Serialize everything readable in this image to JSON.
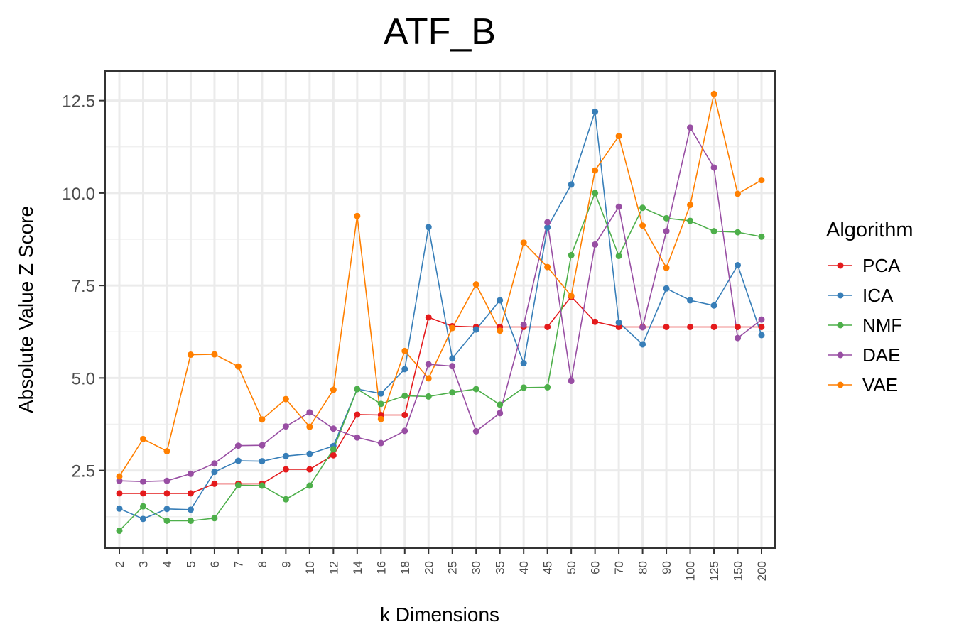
{
  "chart_data": {
    "type": "line",
    "title": "ATF_B",
    "xlabel": "k Dimensions",
    "ylabel": "Absolute Value Z Score",
    "ylim": [
      0.4,
      13.3
    ],
    "yticks": [
      2.5,
      5.0,
      7.5,
      10.0,
      12.5
    ],
    "ytick_labels": [
      "2.5",
      "5.0",
      "7.5",
      "10.0",
      "12.5"
    ],
    "grid": true,
    "legend_title": "Algorithm",
    "legend_position": "right",
    "categories": [
      "2",
      "3",
      "4",
      "5",
      "6",
      "7",
      "8",
      "9",
      "10",
      "12",
      "14",
      "16",
      "18",
      "20",
      "25",
      "30",
      "35",
      "40",
      "45",
      "50",
      "60",
      "70",
      "80",
      "90",
      "100",
      "125",
      "150",
      "200"
    ],
    "series": [
      {
        "name": "PCA",
        "color": "#e41a1c",
        "values": [
          1.88,
          1.88,
          1.88,
          1.88,
          2.14,
          2.14,
          2.14,
          2.53,
          2.53,
          2.91,
          4.01,
          4.0,
          4.0,
          6.64,
          6.4,
          6.38,
          6.38,
          6.38,
          6.38,
          7.2,
          6.52,
          6.38,
          6.38,
          6.38,
          6.38,
          6.38,
          6.38,
          6.38
        ]
      },
      {
        "name": "ICA",
        "color": "#377eb8",
        "values": [
          1.47,
          1.19,
          1.46,
          1.44,
          2.46,
          2.76,
          2.75,
          2.89,
          2.95,
          3.16,
          4.7,
          4.58,
          5.24,
          9.08,
          5.53,
          6.31,
          7.1,
          5.4,
          9.07,
          10.23,
          12.2,
          6.5,
          5.91,
          7.42,
          7.1,
          6.96,
          8.05,
          6.16
        ]
      },
      {
        "name": "NMF",
        "color": "#4daf4a",
        "values": [
          0.87,
          1.53,
          1.14,
          1.14,
          1.21,
          2.1,
          2.09,
          1.72,
          2.09,
          3.07,
          4.7,
          4.3,
          4.52,
          4.5,
          4.61,
          4.7,
          4.28,
          4.74,
          4.75,
          8.32,
          10.0,
          8.3,
          9.6,
          9.32,
          9.25,
          8.97,
          8.94,
          8.82
        ]
      },
      {
        "name": "DAE",
        "color": "#984ea3",
        "values": [
          2.22,
          2.2,
          2.22,
          2.41,
          2.69,
          3.17,
          3.18,
          3.69,
          4.07,
          3.63,
          3.39,
          3.24,
          3.57,
          5.37,
          5.32,
          3.56,
          4.05,
          6.44,
          9.21,
          4.92,
          8.61,
          9.63,
          6.37,
          8.97,
          11.77,
          10.69,
          6.08,
          6.58
        ]
      },
      {
        "name": "VAE",
        "color": "#ff7f00",
        "values": [
          2.34,
          3.35,
          3.02,
          5.63,
          5.64,
          5.31,
          3.88,
          4.43,
          3.68,
          4.68,
          9.38,
          3.89,
          5.73,
          4.99,
          6.35,
          7.53,
          6.28,
          8.66,
          8.0,
          7.22,
          10.61,
          11.54,
          9.12,
          7.98,
          9.68,
          12.68,
          9.98,
          10.35
        ]
      }
    ]
  }
}
